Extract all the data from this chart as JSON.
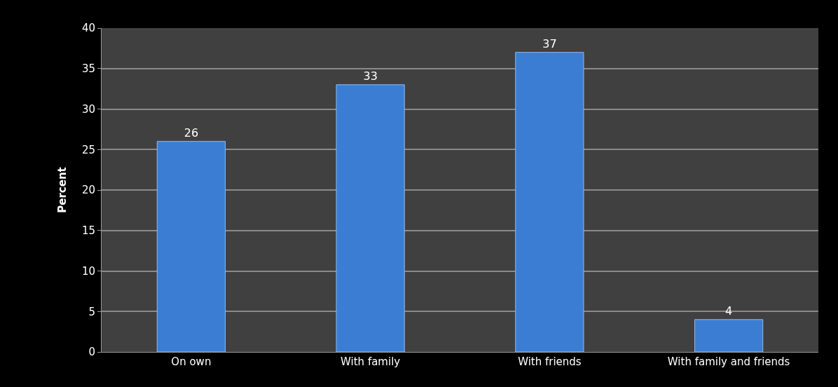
{
  "chart_data": {
    "type": "bar",
    "ylabel": "Percent",
    "categories": [
      "On own",
      "With family",
      "With friends",
      "With family and friends"
    ],
    "values": [
      26,
      33,
      37,
      4
    ],
    "color": "#3c7dd4",
    "ylim": [
      0,
      40
    ],
    "yticks": [
      0,
      5,
      10,
      15,
      20,
      25,
      30,
      35,
      40
    ],
    "grid": "y",
    "data_labels": true
  }
}
